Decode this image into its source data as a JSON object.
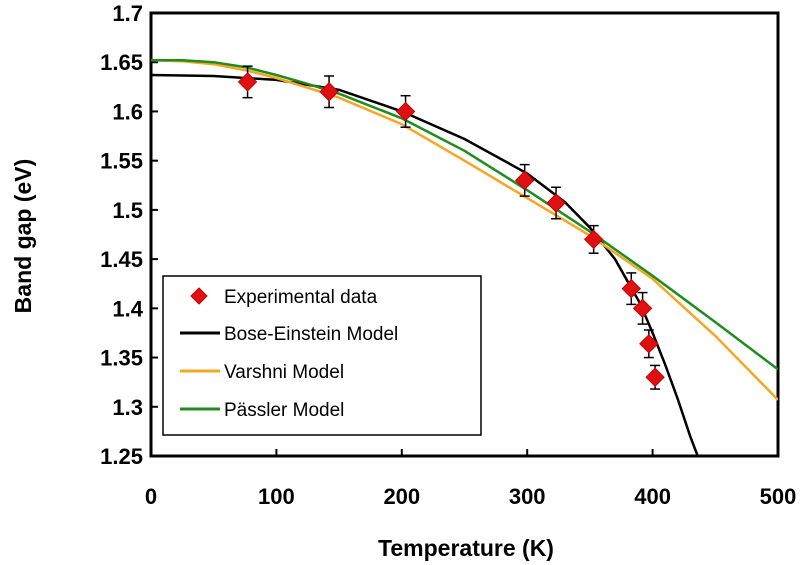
{
  "chart_data": {
    "type": "scatter",
    "title": "",
    "xlabel": "Temperature (K)",
    "ylabel": "Band gap (eV)",
    "xlim": [
      0,
      500
    ],
    "ylim": [
      1.25,
      1.7
    ],
    "xticks": [
      0,
      100,
      200,
      300,
      400,
      500
    ],
    "yticks": [
      1.25,
      1.3,
      1.35,
      1.4,
      1.45,
      1.5,
      1.55,
      1.6,
      1.65,
      1.7
    ],
    "xtick_labels": [
      "0",
      "100",
      "200",
      "300",
      "400",
      "500"
    ],
    "ytick_labels": [
      "1.25",
      "1.3",
      "1.35",
      "1.4",
      "1.45",
      "1.5",
      "1.55",
      "1.6",
      "1.65",
      "1.7"
    ],
    "grid": false,
    "legend_position": "bottom-left",
    "series": [
      {
        "name": "Experimental data",
        "kind": "scatter",
        "marker": "diamond",
        "color": "#dd1111",
        "points": [
          {
            "x": 77,
            "y": 1.63,
            "err": 0.016
          },
          {
            "x": 142,
            "y": 1.62,
            "err": 0.016
          },
          {
            "x": 203,
            "y": 1.6,
            "err": 0.016
          },
          {
            "x": 298,
            "y": 1.53,
            "err": 0.016
          },
          {
            "x": 323,
            "y": 1.507,
            "err": 0.016
          },
          {
            "x": 353,
            "y": 1.47,
            "err": 0.014
          },
          {
            "x": 383,
            "y": 1.42,
            "err": 0.016
          },
          {
            "x": 392,
            "y": 1.4,
            "err": 0.016
          },
          {
            "x": 397,
            "y": 1.364,
            "err": 0.014
          },
          {
            "x": 402,
            "y": 1.33,
            "err": 0.012
          }
        ]
      },
      {
        "name": "Bose-Einstein Model",
        "kind": "line",
        "color": "#000000",
        "x": [
          0,
          50,
          100,
          150,
          200,
          250,
          300,
          330,
          350,
          370,
          390,
          400,
          410,
          420,
          430,
          436
        ],
        "y": [
          1.637,
          1.636,
          1.632,
          1.622,
          1.6,
          1.572,
          1.537,
          1.508,
          1.482,
          1.45,
          1.405,
          1.375,
          1.343,
          1.308,
          1.27,
          1.25
        ]
      },
      {
        "name": "Varshni Model",
        "kind": "line",
        "color": "#f5a623",
        "x": [
          0,
          25,
          50,
          75,
          100,
          125,
          150,
          200,
          250,
          300,
          350,
          400,
          450,
          500
        ],
        "y": [
          1.652,
          1.651,
          1.648,
          1.642,
          1.634,
          1.624,
          1.614,
          1.587,
          1.55,
          1.512,
          1.474,
          1.43,
          1.372,
          1.307
        ]
      },
      {
        "name": "Pässler Model",
        "kind": "line",
        "color": "#1e8c1e",
        "x": [
          0,
          25,
          50,
          75,
          100,
          125,
          150,
          200,
          250,
          300,
          350,
          400,
          450,
          500
        ],
        "y": [
          1.652,
          1.652,
          1.65,
          1.645,
          1.637,
          1.628,
          1.618,
          1.593,
          1.56,
          1.52,
          1.478,
          1.433,
          1.386,
          1.338
        ]
      }
    ]
  }
}
